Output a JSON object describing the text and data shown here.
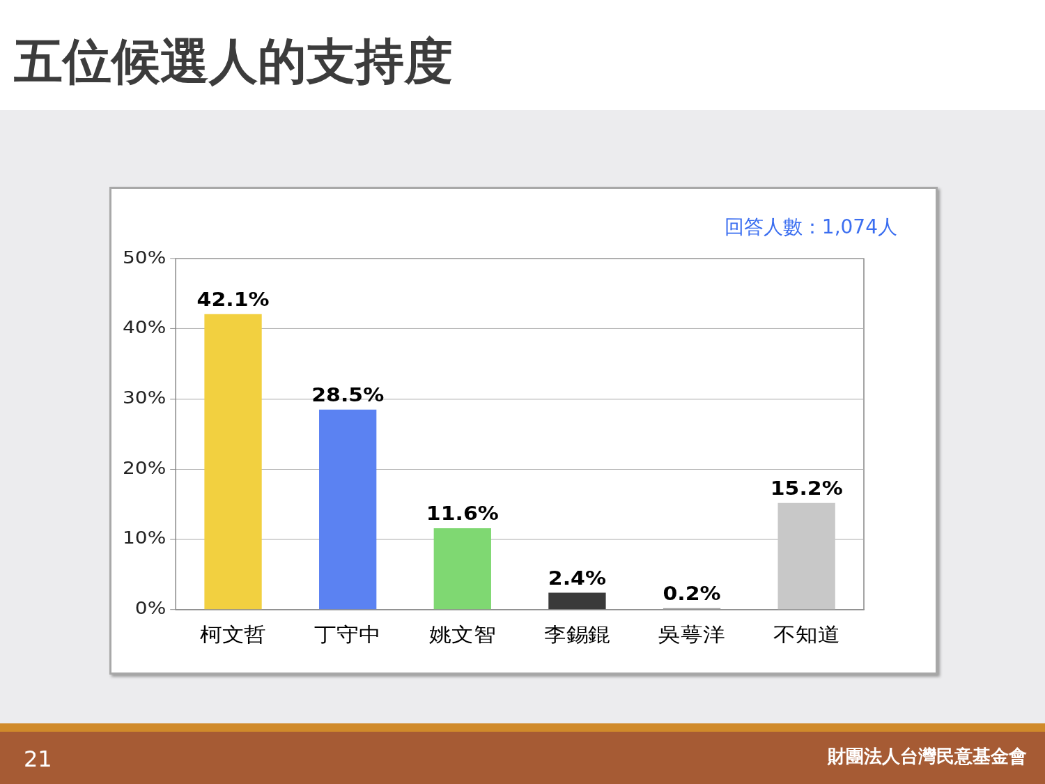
{
  "chart_data": {
    "type": "bar",
    "title": "五位候選人的支持度",
    "categories": [
      "柯文哲",
      "丁守中",
      "姚文智",
      "李錫錕",
      "吳萼洋",
      "不知道"
    ],
    "values": [
      42.1,
      28.5,
      11.6,
      2.4,
      0.2,
      15.2
    ],
    "colors": [
      "#f2d040",
      "#5b82f2",
      "#7fd872",
      "#3a3a3a",
      "#9a9a9a",
      "#c8c8c8"
    ],
    "value_labels": [
      "42.1%",
      "28.5%",
      "11.6%",
      "2.4%",
      "0.2%",
      "15.2%"
    ],
    "ylim": [
      0,
      50
    ],
    "yticks": [
      {
        "value": 0,
        "label": "0%"
      },
      {
        "value": 10,
        "label": "10%"
      },
      {
        "value": 20,
        "label": "20%"
      },
      {
        "value": 30,
        "label": "30%"
      },
      {
        "value": 40,
        "label": "40%"
      },
      {
        "value": 50,
        "label": "50%"
      }
    ],
    "grid": "y",
    "annotations": [
      "回答人數：1,074人",
      "21",
      "財團法人台灣民意基金會"
    ]
  }
}
